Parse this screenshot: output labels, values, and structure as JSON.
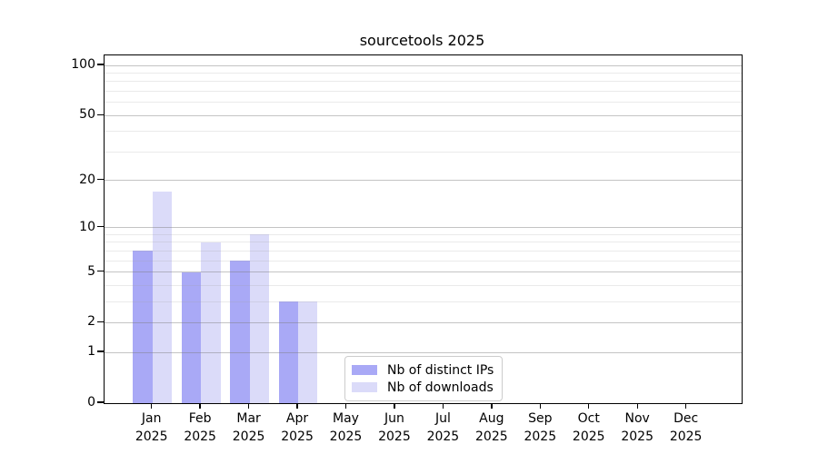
{
  "title": "sourcetools 2025",
  "chart_data": {
    "type": "bar",
    "title": "sourcetools 2025",
    "categories": [
      "Jan",
      "Feb",
      "Mar",
      "Apr",
      "May",
      "Jun",
      "Jul",
      "Aug",
      "Sep",
      "Oct",
      "Nov",
      "Dec"
    ],
    "category_year": "2025",
    "series": [
      {
        "name": "Nb of distinct IPs",
        "color": "#a9a9f6",
        "values": [
          7,
          5,
          6,
          3,
          0,
          0,
          0,
          0,
          0,
          0,
          0,
          0
        ]
      },
      {
        "name": "Nb of downloads",
        "color": "#dbdbf9",
        "values": [
          17,
          8,
          9,
          3,
          0,
          0,
          0,
          0,
          0,
          0,
          0,
          0
        ]
      }
    ],
    "yscale": "log1p",
    "ylim": [
      0,
      115
    ],
    "yticks_major": [
      0,
      1,
      2,
      5,
      10,
      20,
      50,
      100
    ],
    "yticks_minor": [
      3,
      4,
      6,
      7,
      8,
      9,
      30,
      40,
      60,
      70,
      80,
      90
    ],
    "grid": "both",
    "legend_position": "inside-lower-center",
    "colors": {
      "major_grid": "rgba(125,125,125,0.45)",
      "minor_grid": "rgba(160,160,160,0.22)",
      "spine": "#000000",
      "background": "#ffffff"
    }
  }
}
